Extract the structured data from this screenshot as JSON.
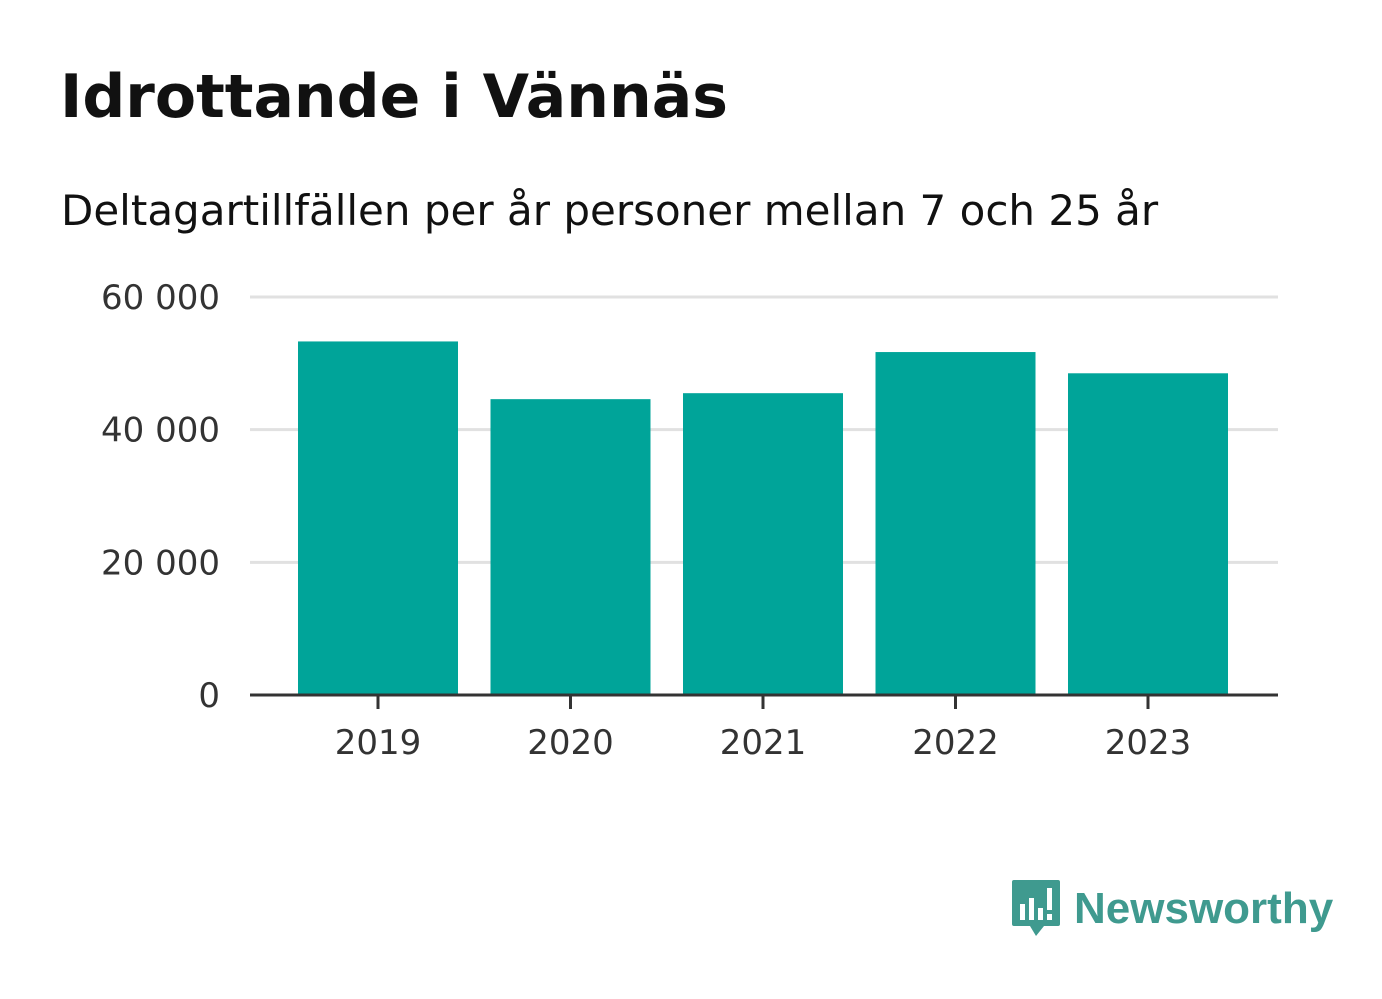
{
  "chart_data": {
    "type": "bar",
    "title": "Idrottande i Vännäs",
    "subtitle": "Deltagartillfällen per år personer mellan 7 och 25 år",
    "categories": [
      "2019",
      "2020",
      "2021",
      "2022",
      "2023"
    ],
    "values": [
      53300,
      44600,
      45500,
      51700,
      48500
    ],
    "ylim": [
      0,
      60000
    ],
    "yticks": [
      0,
      20000,
      40000,
      60000
    ],
    "ytick_labels": [
      "0",
      "20 000",
      "40 000",
      "60 000"
    ],
    "grid": true,
    "bar_color": "#00a499",
    "grid_color": "#e1e1e1",
    "axis_color": "#333333"
  },
  "brand": {
    "name": "Newsworthy",
    "color": "#3f9a8f",
    "icon": "newsworthy-logo-icon"
  }
}
